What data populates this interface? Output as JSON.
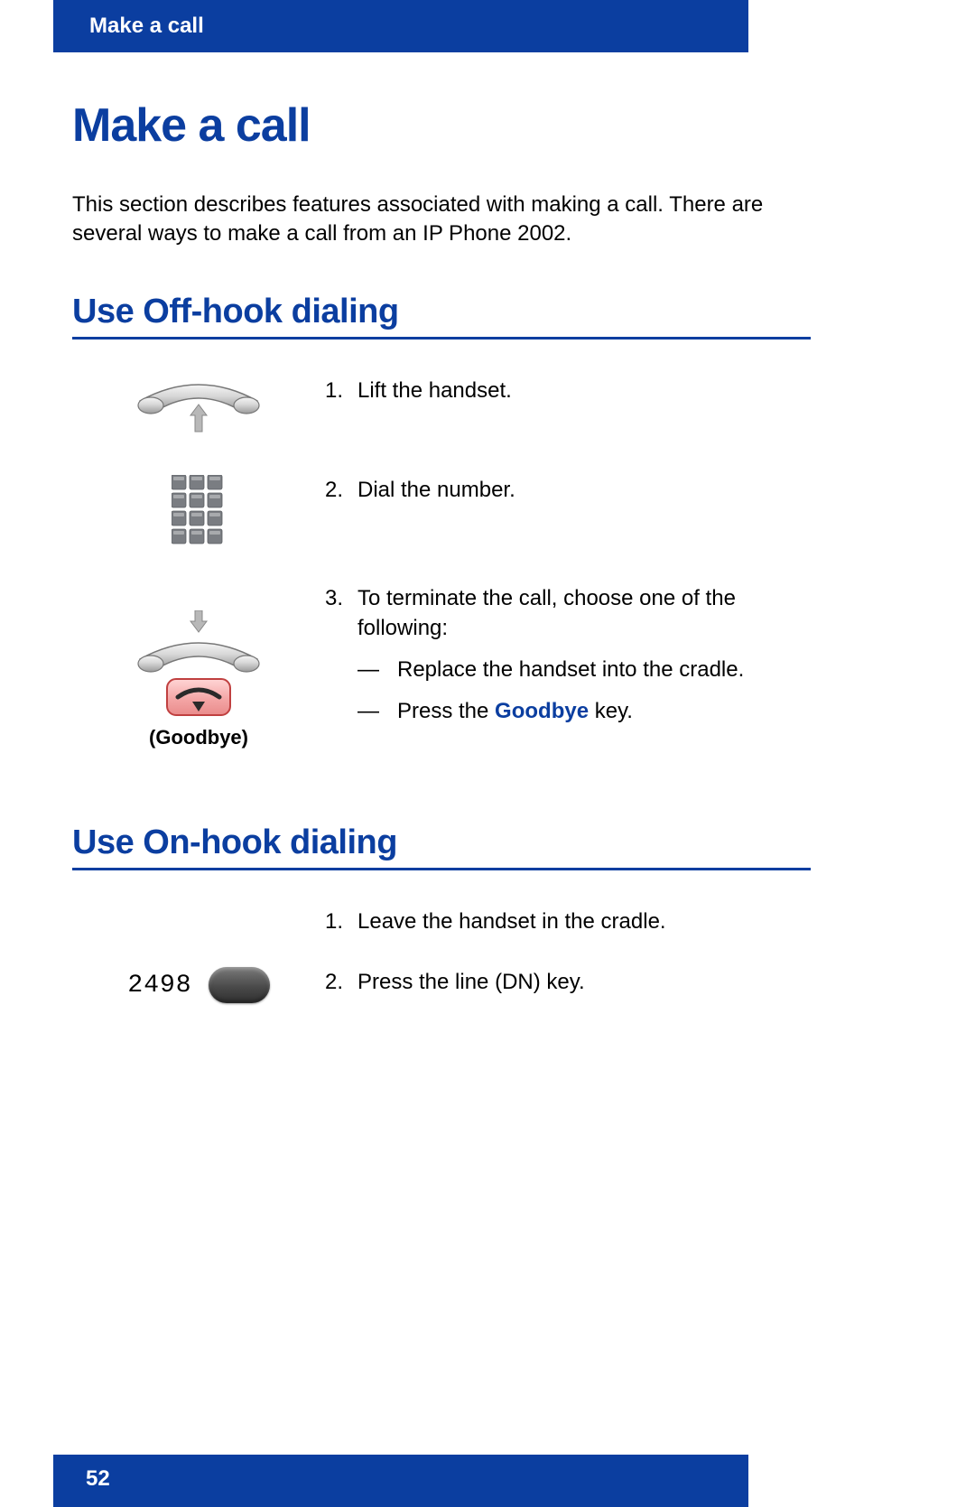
{
  "colors": {
    "brand_blue": "#0b3ea0",
    "heading_blue": "#0b3ea0",
    "rule_blue": "#0b3ea0",
    "goodbye_btn_fill": "#f4a6a6",
    "goodbye_btn_stroke": "#c04040",
    "key_grey": "#7a7d82"
  },
  "header": {
    "section_label": "Make a call"
  },
  "title": "Make a call",
  "intro": "This section describes features associated with making a call. There are several ways to make a call from an IP Phone 2002.",
  "sections": {
    "offhook": {
      "title": "Use Off-hook dialing",
      "step1": {
        "num": "1.",
        "text": "Lift the handset."
      },
      "step2": {
        "num": "2.",
        "text": "Dial the number."
      },
      "step3": {
        "num": "3.",
        "text": "To terminate the call, choose one of the following:",
        "sub1_dash": "—",
        "sub1_text": "Replace the handset into the cradle.",
        "sub2_dash": "—",
        "sub2_pre": "Press the ",
        "sub2_kw": "Goodbye",
        "sub2_post": " key."
      },
      "goodbye_label": "(Goodbye)"
    },
    "onhook": {
      "title": "Use On-hook dialing",
      "step1": {
        "num": "1.",
        "text": "Leave the handset in the cradle."
      },
      "step2": {
        "num": "2.",
        "text": "Press the line (DN) key."
      },
      "dn_number": "2498"
    }
  },
  "footer": {
    "page_number": "52"
  }
}
